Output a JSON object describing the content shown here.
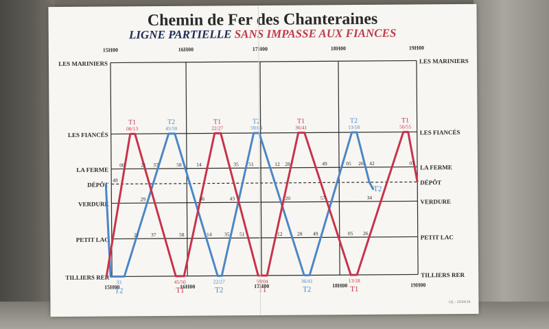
{
  "title": "Chemin de Fer des Chanteraines",
  "subtitle_part1": "LIGNE PARTIELLE",
  "subtitle_part2": "SANS IMPASSE AUX FIANCES",
  "hours": [
    "15H00",
    "16H00",
    "17H00",
    "18H00",
    "19H00"
  ],
  "stations_left": [
    "LES MARINIERS",
    "LES FIANCÉS",
    "LA FERME",
    "DÉPÔT",
    "VERDURE",
    "PETIT LAC",
    "TILLIERS RER"
  ],
  "stations_right": [
    "LES MARINIERS",
    "LES FIANCÉS",
    "LA FERME",
    "DÉPÔT",
    "VERDURE",
    "PETIT LAC",
    "TILLIERS RER"
  ],
  "top_labels": [
    {
      "train": "T1",
      "time": "08/13",
      "color": "red"
    },
    {
      "train": "T2",
      "time": "45/50",
      "color": "blue"
    },
    {
      "train": "T1",
      "time": "22/27",
      "color": "red"
    },
    {
      "train": "T2",
      "time": "59/04",
      "color": "blue"
    },
    {
      "train": "T1",
      "time": "36/41",
      "color": "red"
    },
    {
      "train": "T2",
      "time": "13/18",
      "color": "blue"
    },
    {
      "train": "T1",
      "time": "50/55",
      "color": "red"
    }
  ],
  "bottom_labels": [
    {
      "train": "T2",
      "time": "33",
      "color": "blue"
    },
    {
      "train": "T1",
      "time": "45/50",
      "color": "red"
    },
    {
      "train": "T2",
      "time": "22/27",
      "color": "blue"
    },
    {
      "train": "T1",
      "time": "59/04",
      "color": "red"
    },
    {
      "train": "T2",
      "time": "36/41",
      "color": "blue"
    },
    {
      "train": "T1",
      "time": "13/18",
      "color": "red"
    }
  ],
  "ferme_minutes": [
    "00",
    "21",
    "37",
    "58",
    "14",
    "35",
    "51",
    "12",
    "28",
    "49",
    "05",
    "26",
    "42"
  ],
  "verdure_minutes": [
    "29",
    "06",
    "43",
    "20",
    "57",
    "34"
  ],
  "lac_minutes": [
    "21",
    "37",
    "58",
    "14",
    "35",
    "51",
    "12",
    "28",
    "49",
    "05",
    "26"
  ],
  "depot_left": "48",
  "depot_right": "03",
  "depot_train": "T2",
  "footnote": "GL - 25/03/10",
  "colors": {
    "red": "#c8324a",
    "blue": "#4b86c6",
    "ink": "#2b2b2b"
  }
}
